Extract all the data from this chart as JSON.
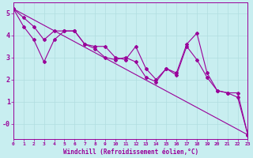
{
  "xlabel": "Windchill (Refroidissement éolien,°C)",
  "xlim": [
    0,
    23
  ],
  "ylim": [
    -0.7,
    5.5
  ],
  "background_color": "#c8eef0",
  "grid_color": "#b0dde0",
  "line_color": "#990099",
  "data_line1_x": [
    0,
    1,
    2,
    3,
    4,
    5,
    6,
    7,
    8,
    9,
    10,
    11,
    12,
    13,
    14,
    15,
    16,
    17,
    18,
    19,
    20,
    21,
    22,
    23
  ],
  "data_line1_y": [
    5.2,
    4.8,
    4.4,
    3.8,
    4.2,
    4.2,
    4.2,
    3.6,
    3.5,
    3.5,
    3.0,
    2.9,
    3.5,
    2.5,
    2.0,
    2.5,
    2.3,
    3.6,
    4.1,
    2.3,
    1.5,
    1.4,
    1.4,
    -0.5
  ],
  "data_line2_x": [
    0,
    1,
    2,
    3,
    4,
    5,
    6,
    7,
    8,
    9,
    10,
    11,
    12,
    13,
    14,
    15,
    16,
    17,
    18,
    19,
    20,
    21,
    22,
    23
  ],
  "data_line2_y": [
    5.2,
    4.4,
    3.8,
    2.8,
    3.8,
    4.2,
    4.2,
    3.6,
    3.4,
    3.0,
    2.9,
    3.0,
    2.8,
    2.1,
    1.9,
    2.5,
    2.2,
    3.5,
    2.9,
    2.1,
    1.5,
    1.4,
    1.2,
    -0.5
  ],
  "trend_x": [
    0,
    23
  ],
  "trend_y": [
    5.2,
    -0.5
  ],
  "line_width": 0.8,
  "marker": "D",
  "marker_size": 2.0,
  "xtick_fontsize": 4.5,
  "ytick_fontsize": 6.0,
  "xlabel_fontsize": 5.5
}
